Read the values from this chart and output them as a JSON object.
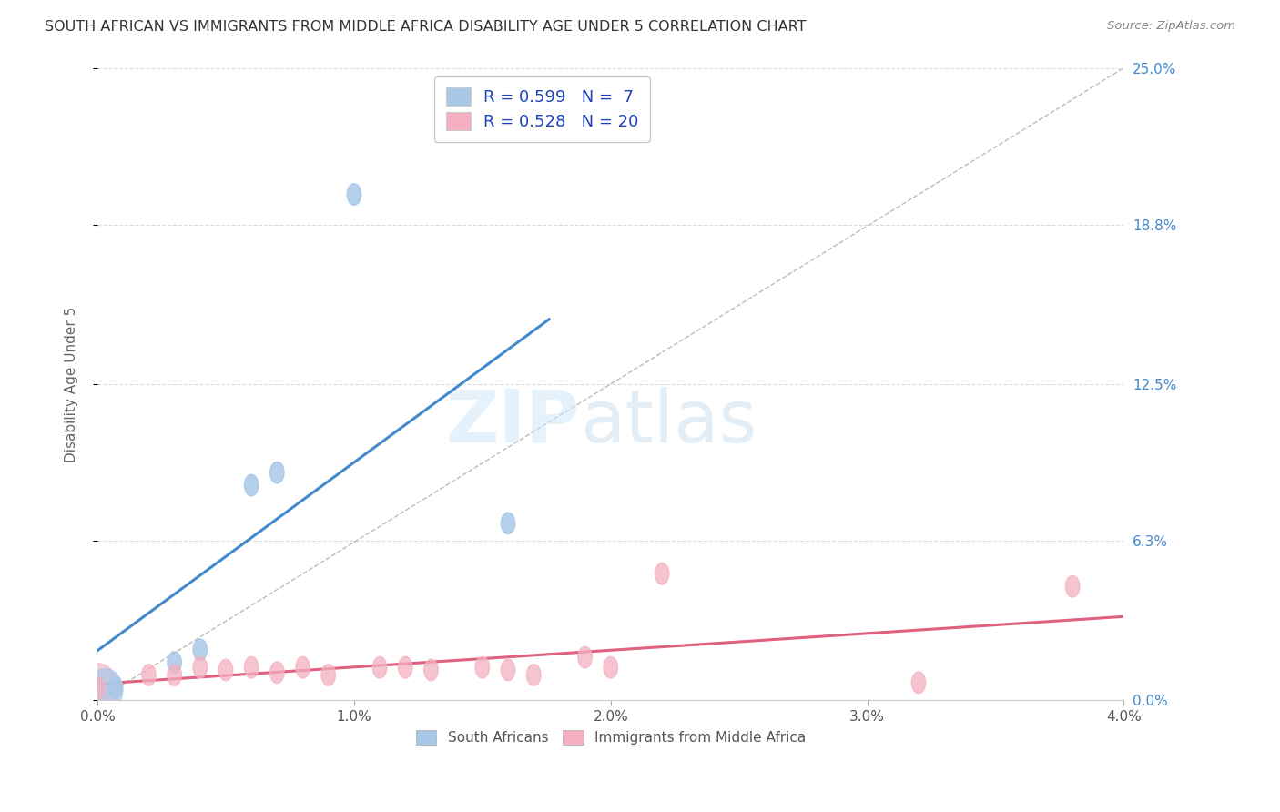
{
  "title": "SOUTH AFRICAN VS IMMIGRANTS FROM MIDDLE AFRICA DISABILITY AGE UNDER 5 CORRELATION CHART",
  "source": "Source: ZipAtlas.com",
  "ylabel": "Disability Age Under 5",
  "xlim": [
    0.0,
    0.04
  ],
  "ylim": [
    0.0,
    0.25
  ],
  "xtick_vals": [
    0.0,
    0.01,
    0.02,
    0.03,
    0.04
  ],
  "ytick_vals": [
    0.0,
    0.063,
    0.125,
    0.188,
    0.25
  ],
  "ytick_labels_right": [
    "0.0%",
    "6.3%",
    "12.5%",
    "18.8%",
    "25.0%"
  ],
  "south_african_x": [
    0.0007,
    0.003,
    0.004,
    0.006,
    0.007,
    0.01,
    0.016
  ],
  "south_african_y": [
    0.005,
    0.015,
    0.02,
    0.085,
    0.09,
    0.2,
    0.07
  ],
  "immigrant_x": [
    0.0,
    0.002,
    0.003,
    0.004,
    0.005,
    0.006,
    0.007,
    0.008,
    0.009,
    0.011,
    0.012,
    0.013,
    0.015,
    0.016,
    0.017,
    0.019,
    0.02,
    0.022,
    0.032,
    0.038
  ],
  "immigrant_y": [
    0.005,
    0.01,
    0.01,
    0.013,
    0.012,
    0.013,
    0.011,
    0.013,
    0.01,
    0.013,
    0.013,
    0.012,
    0.013,
    0.012,
    0.01,
    0.017,
    0.013,
    0.05,
    0.007,
    0.045
  ],
  "sa_R": 0.599,
  "sa_N": 7,
  "imm_R": 0.528,
  "imm_N": 20,
  "sa_color": "#a8c8e8",
  "sa_line_color": "#4488cc",
  "imm_color": "#f4b0c0",
  "imm_line_color": "#e06080",
  "ref_line_color": "#aaaaaa",
  "title_color": "#333333",
  "axis_label_color": "#666666",
  "right_tick_color": "#4488cc",
  "background_color": "#ffffff",
  "grid_color": "#dddddd",
  "legend_text_color": "#2244bb",
  "watermark_color": "#d0e8f8"
}
